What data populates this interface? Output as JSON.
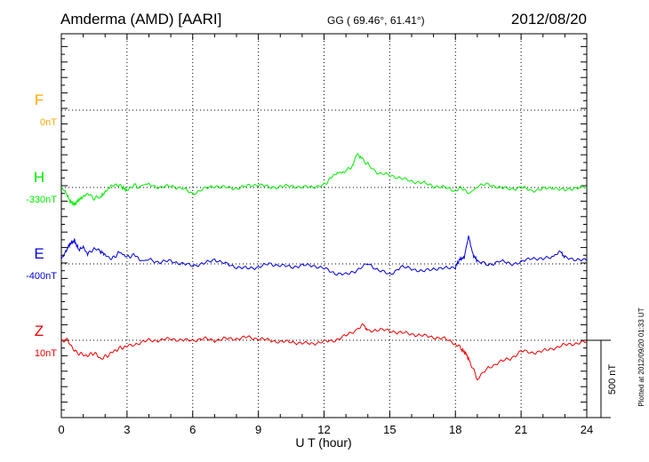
{
  "header": {
    "station": "Amderma (AMD)  [AARI]",
    "coords": "GG ( 69.46°,  61.41°)",
    "date": "2012/08/20"
  },
  "footer": {
    "plotted": "Plotted at 2012/09/20 01:33 UT"
  },
  "colors": {
    "F": "#ffaa00",
    "H": "#00ee00",
    "E": "#0000dd",
    "Z": "#ee0000",
    "axis": "#000000"
  },
  "chart_data": {
    "type": "line",
    "xlabel": "U T (hour)",
    "xlim": [
      0,
      24
    ],
    "xticks": [
      "0",
      "3",
      "6",
      "9",
      "12",
      "15",
      "18",
      "21",
      "24"
    ],
    "scale_bar": {
      "label": "500 nT",
      "value": 500
    },
    "series": [
      {
        "name": "F",
        "baseline": "0nT",
        "x": [],
        "values": []
      },
      {
        "name": "H",
        "baseline": "-330nT",
        "x": [
          0,
          0.2,
          0.4,
          0.6,
          0.8,
          1.0,
          1.2,
          1.5,
          1.8,
          2.0,
          2.2,
          2.5,
          2.8,
          3.0,
          3.3,
          3.6,
          4.0,
          4.5,
          5.0,
          5.5,
          6.0,
          6.5,
          7.0,
          7.5,
          8.0,
          8.5,
          9.0,
          9.5,
          10.0,
          10.5,
          11.0,
          11.5,
          12.0,
          12.3,
          12.6,
          13.0,
          13.3,
          13.5,
          13.7,
          14.0,
          14.5,
          15.0,
          15.5,
          16.0,
          16.5,
          17.0,
          17.5,
          18.0,
          18.3,
          18.6,
          19.0,
          19.5,
          20.0,
          20.5,
          21.0,
          21.5,
          22.0,
          22.5,
          23.0,
          23.5,
          24.0
        ],
        "values": [
          0,
          -30,
          -90,
          -110,
          -80,
          -60,
          -40,
          -70,
          -60,
          -30,
          0,
          20,
          0,
          -20,
          15,
          0,
          20,
          0,
          10,
          -5,
          -40,
          -10,
          10,
          0,
          -5,
          10,
          20,
          0,
          5,
          10,
          0,
          5,
          15,
          60,
          100,
          110,
          140,
          220,
          190,
          150,
          90,
          80,
          60,
          40,
          30,
          10,
          0,
          -20,
          0,
          -40,
          10,
          20,
          0,
          -10,
          0,
          -20,
          -10,
          0,
          -20,
          0,
          0
        ]
      },
      {
        "name": "E",
        "baseline": "-400nT",
        "x": [
          0,
          0.2,
          0.4,
          0.6,
          0.8,
          1.0,
          1.2,
          1.5,
          1.8,
          2.0,
          2.3,
          2.6,
          3.0,
          3.3,
          3.6,
          4.0,
          4.5,
          5.0,
          5.5,
          6.0,
          6.5,
          7.0,
          7.5,
          8.0,
          8.5,
          9.0,
          9.5,
          10.0,
          10.5,
          11.0,
          11.5,
          12.0,
          12.5,
          13.0,
          13.5,
          14.0,
          14.5,
          15.0,
          15.5,
          16.0,
          16.5,
          17.0,
          17.5,
          18.0,
          18.2,
          18.4,
          18.6,
          18.8,
          19.0,
          19.5,
          20.0,
          20.5,
          21.0,
          21.5,
          22.0,
          22.5,
          22.8,
          23.0,
          23.5,
          24.0
        ],
        "values": [
          30,
          80,
          130,
          150,
          90,
          110,
          60,
          100,
          80,
          60,
          30,
          70,
          40,
          60,
          30,
          30,
          10,
          20,
          0,
          -10,
          0,
          30,
          0,
          -20,
          -30,
          -20,
          0,
          -10,
          -20,
          -10,
          -10,
          -30,
          -60,
          -70,
          -40,
          0,
          -40,
          -70,
          -20,
          -30,
          -50,
          -30,
          -30,
          -20,
          30,
          40,
          180,
          60,
          20,
          -10,
          20,
          0,
          10,
          40,
          30,
          50,
          80,
          40,
          30,
          20
        ]
      },
      {
        "name": "Z",
        "baseline": "10nT",
        "x": [
          0,
          0.3,
          0.6,
          0.9,
          1.2,
          1.5,
          1.8,
          2.1,
          2.4,
          2.7,
          3.0,
          3.5,
          4.0,
          4.5,
          5.0,
          5.5,
          6.0,
          6.5,
          7.0,
          7.5,
          8.0,
          8.5,
          9.0,
          9.5,
          10.0,
          10.5,
          11.0,
          11.5,
          12.0,
          12.5,
          13.0,
          13.5,
          13.8,
          14.0,
          14.5,
          15.0,
          15.5,
          16.0,
          16.5,
          17.0,
          17.5,
          18.0,
          18.3,
          18.5,
          18.7,
          19.0,
          19.5,
          20.0,
          20.5,
          21.0,
          21.5,
          22.0,
          22.5,
          23.0,
          23.5,
          24.0
        ],
        "values": [
          0,
          0,
          -70,
          -90,
          -100,
          -80,
          -120,
          -100,
          -70,
          -50,
          -40,
          -20,
          0,
          0,
          10,
          0,
          0,
          10,
          0,
          10,
          10,
          20,
          10,
          0,
          -10,
          -10,
          -20,
          -20,
          -10,
          0,
          30,
          70,
          100,
          60,
          70,
          60,
          50,
          40,
          30,
          20,
          10,
          -20,
          -60,
          -90,
          -150,
          -250,
          -180,
          -140,
          -120,
          -70,
          -80,
          -70,
          -50,
          -30,
          -20,
          -10
        ]
      }
    ]
  }
}
